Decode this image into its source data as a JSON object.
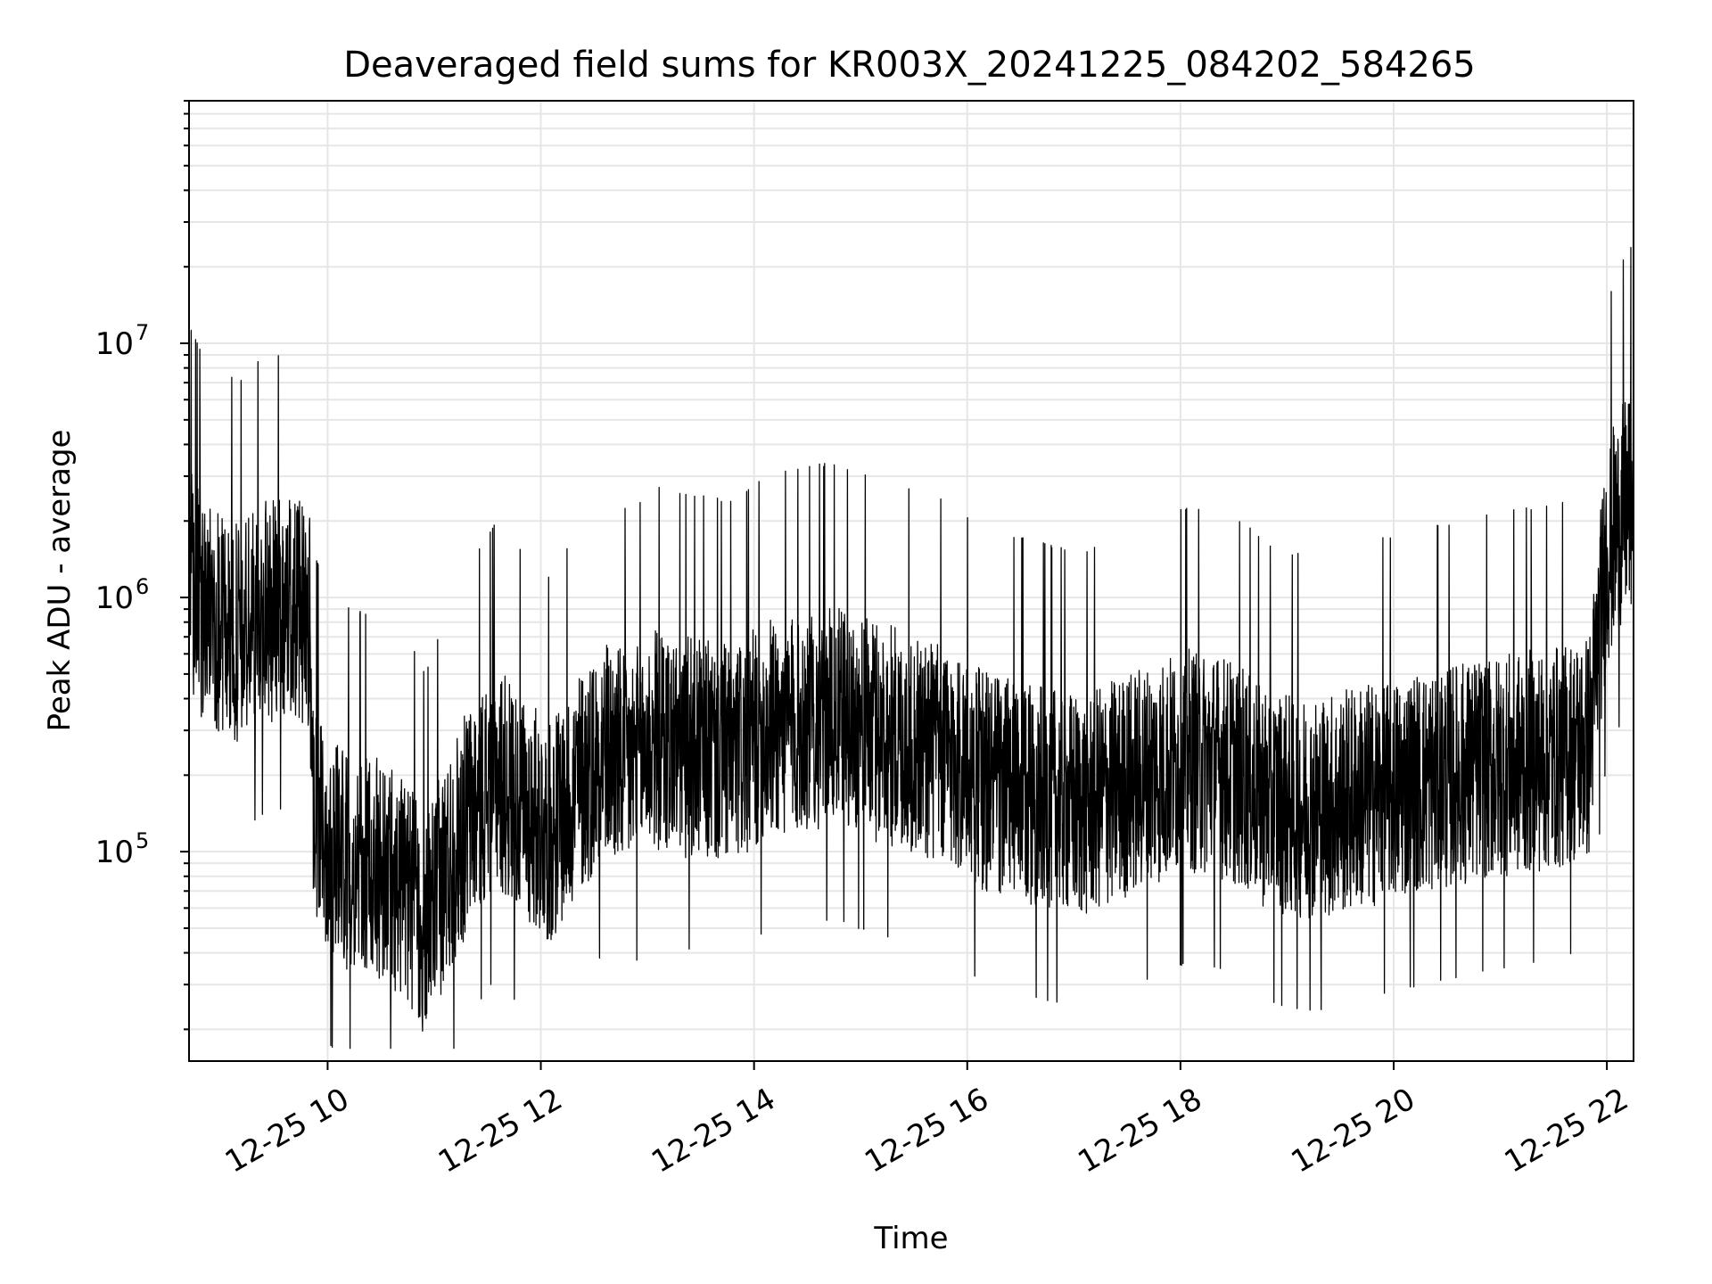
{
  "chart_data": {
    "type": "line",
    "title": "Deaveraged field sums for KR003X_20241225_084202_584265",
    "xlabel": "Time",
    "ylabel": "Peak ADU - average",
    "yscale": "log",
    "grid": true,
    "ylim": [
      15000,
      90000000
    ],
    "xlim": [
      "12-25 08:42",
      "12-25 22:15"
    ],
    "x_ticks": [
      "12-25 10",
      "12-25 12",
      "12-25 14",
      "12-25 16",
      "12-25 18",
      "12-25 20",
      "12-25 22"
    ],
    "y_ticks": [
      {
        "base": "10",
        "exp": "5",
        "value": 100000
      },
      {
        "base": "10",
        "exp": "6",
        "value": 1000000
      },
      {
        "base": "10",
        "exp": "7",
        "value": 10000000
      }
    ],
    "line_color": "#000000",
    "series": [
      {
        "x": [
          "12-25 08:42",
          "12-25 08:50",
          "12-25 09:00",
          "12-25 09:10",
          "12-25 09:20",
          "12-25 09:30",
          "12-25 09:40",
          "12-25 09:50",
          "12-25 09:52",
          "12-25 10:00",
          "12-25 10:15",
          "12-25 10:30",
          "12-25 10:45",
          "12-25 10:55",
          "12-25 11:05",
          "12-25 11:20",
          "12-25 11:35",
          "12-25 11:50",
          "12-25 12:05",
          "12-25 12:20",
          "12-25 12:35",
          "12-25 12:50",
          "12-25 13:05",
          "12-25 13:20",
          "12-25 13:35",
          "12-25 13:50",
          "12-25 14:05",
          "12-25 14:20",
          "12-25 14:35",
          "12-25 14:50",
          "12-25 15:05",
          "12-25 15:20",
          "12-25 15:35",
          "12-25 15:50",
          "12-25 16:05",
          "12-25 16:20",
          "12-25 16:35",
          "12-25 16:50",
          "12-25 17:05",
          "12-25 17:20",
          "12-25 17:35",
          "12-25 17:50",
          "12-25 18:05",
          "12-25 18:20",
          "12-25 18:35",
          "12-25 18:50",
          "12-25 19:05",
          "12-25 19:20",
          "12-25 19:35",
          "12-25 19:50",
          "12-25 20:05",
          "12-25 20:20",
          "12-25 20:35",
          "12-25 20:50",
          "12-25 21:05",
          "12-25 21:20",
          "12-25 21:35",
          "12-25 21:50",
          "12-25 22:00",
          "12-25 22:05",
          "12-25 22:10",
          "12-25 22:15"
        ],
        "y": [
          1200000,
          900000,
          800000,
          700000,
          850000,
          900000,
          950000,
          800000,
          150000,
          110000,
          90000,
          85000,
          70000,
          50000,
          80000,
          140000,
          200000,
          150000,
          120000,
          180000,
          250000,
          220000,
          280000,
          260000,
          250000,
          240000,
          300000,
          320000,
          340000,
          330000,
          300000,
          280000,
          260000,
          240000,
          200000,
          180000,
          170000,
          160000,
          150000,
          170000,
          190000,
          210000,
          230000,
          220000,
          200000,
          160000,
          150000,
          150000,
          160000,
          170000,
          180000,
          190000,
          200000,
          210000,
          220000,
          230000,
          240000,
          260000,
          1500000,
          1800000,
          2200000,
          2500000
        ]
      }
    ]
  }
}
